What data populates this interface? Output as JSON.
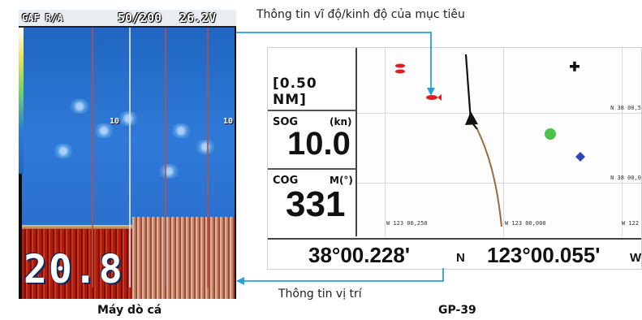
{
  "fish_finder": {
    "top_left_label": "GAF R/A",
    "range": "50/200",
    "voltage": "26.2V",
    "scale_tick_left": "10",
    "scale_tick_right": "10",
    "depth_reading": "20.8",
    "caption": "Máy dò cá"
  },
  "gp39": {
    "range_label": "[0.50 NM]",
    "sog": {
      "label": "SOG",
      "unit": "(kn)",
      "value": "10.0"
    },
    "cog": {
      "label": "COG",
      "unit": "M(°)",
      "value": "331"
    },
    "lat_ticks": [
      "N 38 00,5",
      "N 38 00,0"
    ],
    "lon_ticks": [
      "W 123 00,250",
      "W 123 00,000",
      "W 122"
    ],
    "latitude": "38°00.228'",
    "lat_hemisphere": "N",
    "longitude": "123°00.055'",
    "lon_hemisphere": "W",
    "caption": "GP-39"
  },
  "annotations": {
    "target_info": "Thông tin vĩ độ/kinh độ của mục tiêu",
    "position_info": "Thông tin vị trí"
  },
  "colors": {
    "connector": "#2a9ed8",
    "target_marker": "#e02020",
    "green_marker": "#4cc34c",
    "blue_marker": "#2c49b6",
    "track": "#9a6a3c"
  }
}
